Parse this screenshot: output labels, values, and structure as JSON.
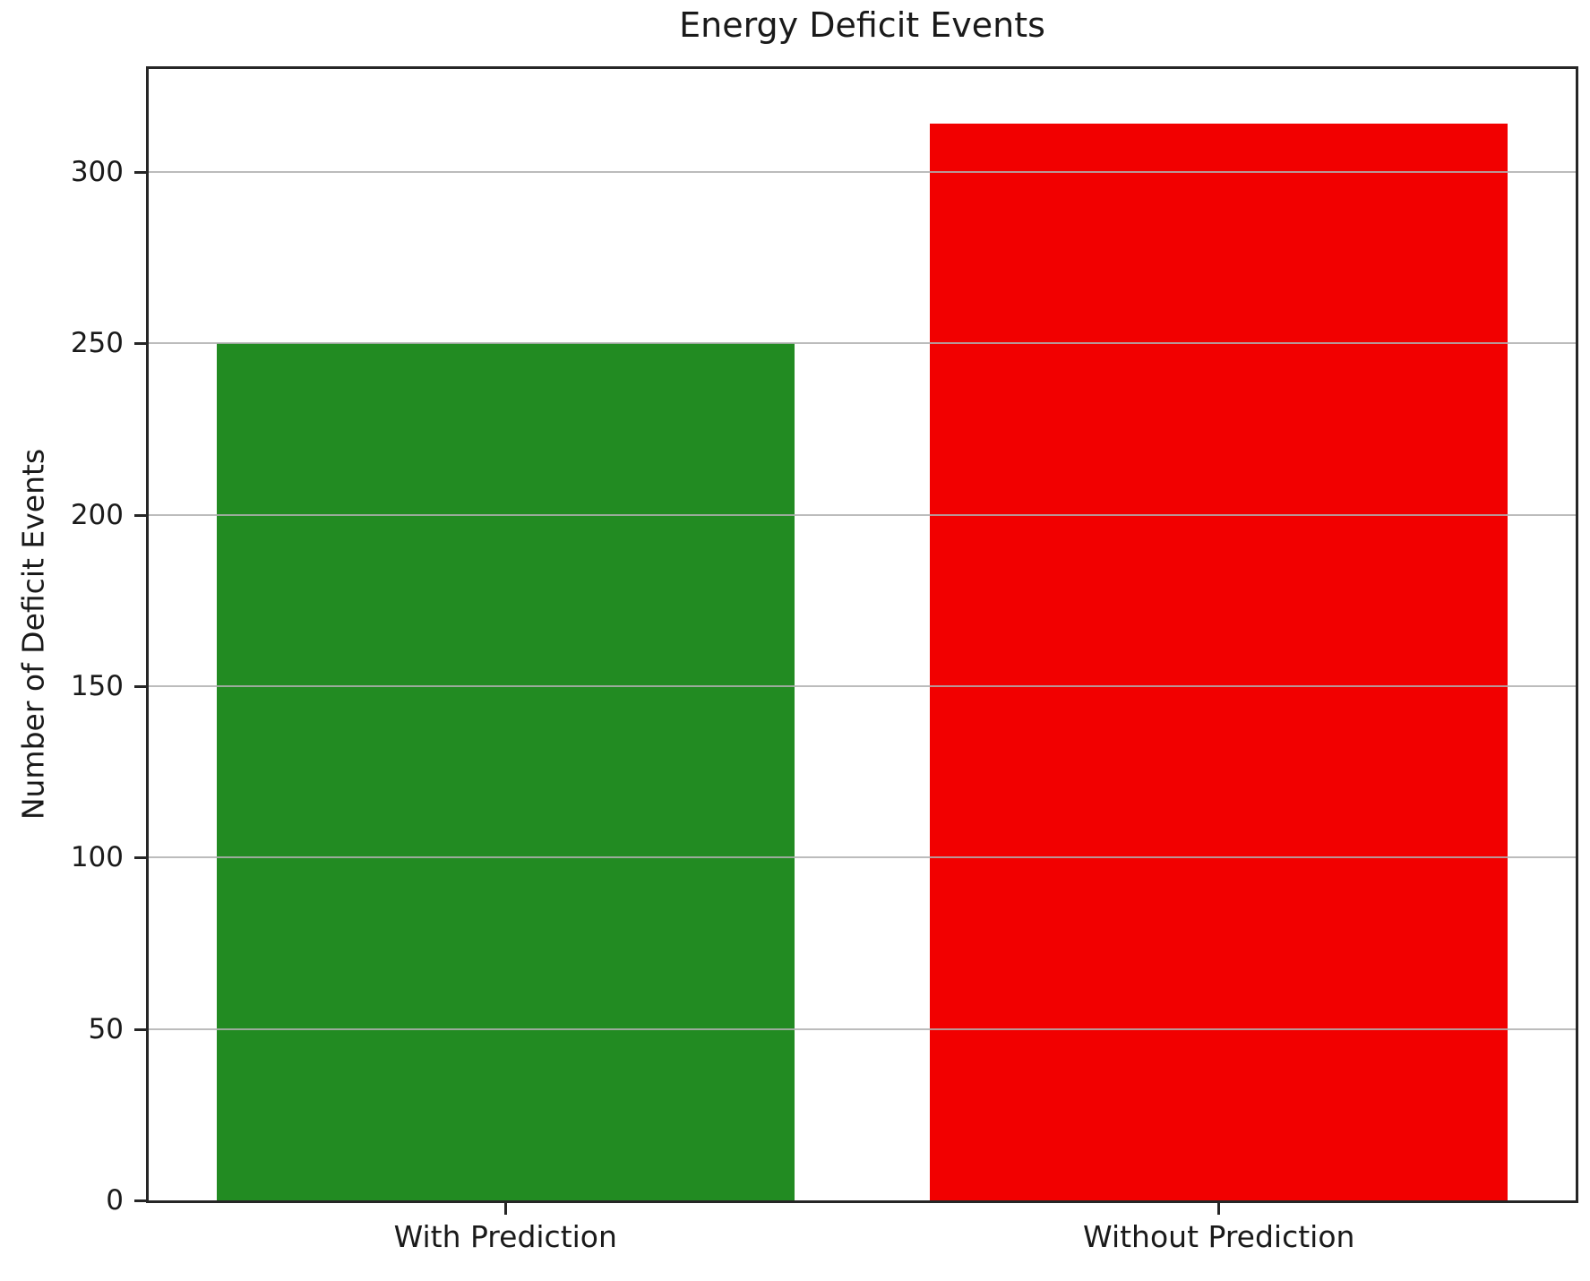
{
  "figure": {
    "background": "#ffffff"
  },
  "chart_data": {
    "type": "bar",
    "title": "Energy Deficit Events",
    "categories": [
      "With Prediction",
      "Without Prediction"
    ],
    "values": [
      250,
      314
    ],
    "bar_colors": [
      "#228B22",
      "#F20000"
    ],
    "xlabel": "",
    "ylabel": "Number of Deficit Events",
    "ylim": [
      0,
      330
    ],
    "yticks": [
      0,
      50,
      100,
      150,
      200,
      250,
      300
    ],
    "grid": "horizontal",
    "grid_color": "#b0b0b0",
    "axis_color": "#262626",
    "text_color": "#1a1a1a",
    "legend": "none",
    "bar_width_fraction": 0.81
  }
}
